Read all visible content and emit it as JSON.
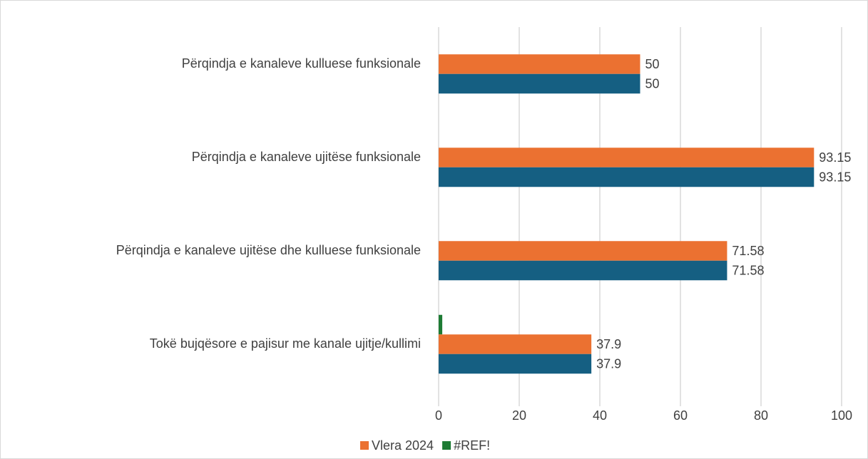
{
  "chart_data": {
    "type": "bar",
    "orientation": "horizontal",
    "categories": [
      "Përqindja e kanaleve kulluese funksionale",
      "Përqindja e kanaleve ujitëse funksionale",
      "Përqindja e kanaleve ujitëse dhe kulluese funksionale",
      "Tokë bujqësore e pajisur me kanale ujitje/kullimi"
    ],
    "series": [
      {
        "name": "#REF!",
        "color": "#1e7b34",
        "values": [
          null,
          null,
          null,
          0.9
        ],
        "show_labels": false
      },
      {
        "name": "Vlera 2024",
        "color": "#eb7131",
        "values": [
          50,
          93.15,
          71.58,
          37.9
        ],
        "show_labels": true
      },
      {
        "name": null,
        "color": "#155f82",
        "values": [
          50,
          93.15,
          71.58,
          37.9
        ],
        "show_labels": true
      }
    ],
    "xlim": [
      0,
      100
    ],
    "xticks": [
      0,
      20,
      40,
      60,
      80,
      100
    ],
    "grid": true,
    "legend": "bottom"
  }
}
